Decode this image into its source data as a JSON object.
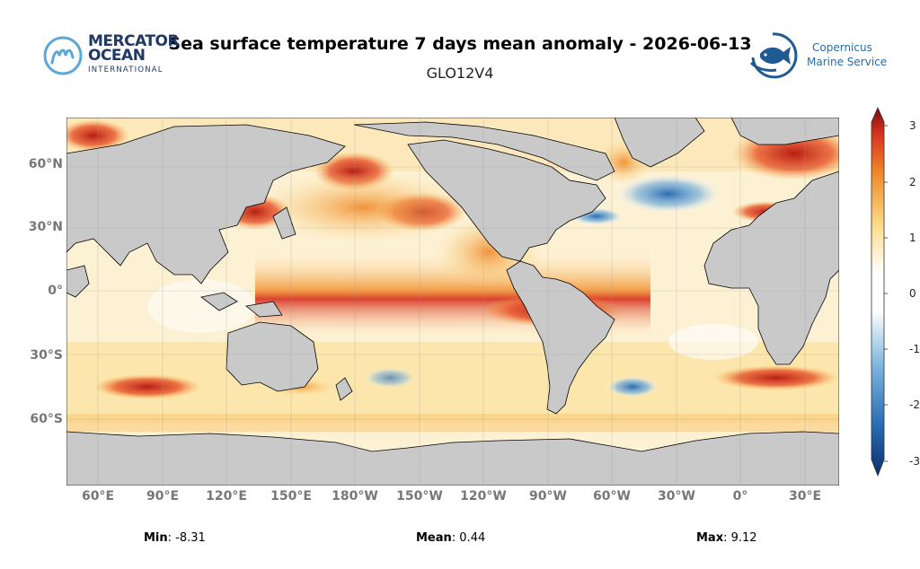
{
  "header": {
    "title": "Sea surface temperature 7 days mean anomaly - 2026-06-13",
    "subtitle": "GLO12V4"
  },
  "logos": {
    "left": {
      "line1": "MERCATOR",
      "line2": "OCEAN",
      "line3": "INTERNATIONAL"
    },
    "right": {
      "line1": "Copernicus",
      "line2": "Marine Service"
    }
  },
  "axes": {
    "lat_ticks": [
      "60°N",
      "30°N",
      "0°",
      "30°S",
      "60°S"
    ],
    "lon_ticks": [
      "60°E",
      "90°E",
      "120°E",
      "150°E",
      "180°W",
      "150°W",
      "120°W",
      "90°W",
      "60°W",
      "30°W",
      "0°",
      "30°E"
    ]
  },
  "colorbar": {
    "ticks": [
      "3",
      "2",
      "1",
      "0",
      "-1",
      "-2",
      "-3"
    ],
    "range": [
      -3,
      3
    ],
    "colors": [
      "#0b2e6b",
      "#2a6db3",
      "#7fb6df",
      "#ffffff",
      "#fbdc8a",
      "#f08a2b",
      "#d7301f",
      "#7a0c0c"
    ]
  },
  "stats": [
    {
      "label": "Min",
      "value": ": -8.31"
    },
    {
      "label": "Mean",
      "value": ": 0.44"
    },
    {
      "label": "Max",
      "value": ": 9.12"
    }
  ]
}
